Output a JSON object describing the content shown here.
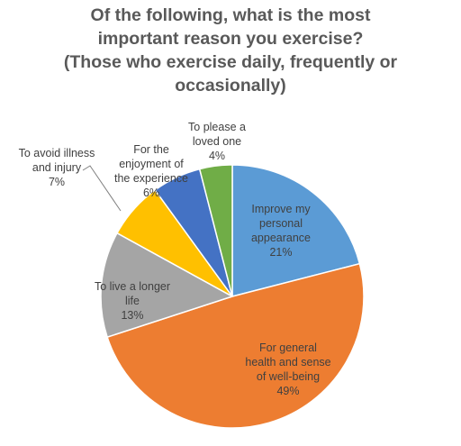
{
  "chart_data": {
    "type": "pie",
    "title": [
      "Of the following, what is the most",
      "important reason you exercise?",
      "(Those who exercise daily, frequently or",
      "occasionally)"
    ],
    "slices": [
      {
        "label": [
          "Improve my",
          "personal",
          "appearance"
        ],
        "value": 21,
        "value_label": "21%",
        "color": "#5b9bd5"
      },
      {
        "label": [
          "For general",
          "health and sense",
          "of well-being"
        ],
        "value": 49,
        "value_label": "49%",
        "color": "#ed7d31"
      },
      {
        "label": [
          "To live a longer",
          "life"
        ],
        "value": 13,
        "value_label": "13%",
        "color": "#a5a5a5"
      },
      {
        "label": [
          "To avoid illness",
          "and injury"
        ],
        "value": 7,
        "value_label": "7%",
        "color": "#ffc000"
      },
      {
        "label": [
          "For the",
          "enjoyment of",
          "the experience"
        ],
        "value": 6,
        "value_label": "6%",
        "color": "#4472c4"
      },
      {
        "label": [
          "To please a",
          "loved one"
        ],
        "value": 4,
        "value_label": "4%",
        "color": "#70ad47"
      }
    ],
    "start_position": "12 o'clock",
    "direction": "clockwise",
    "legend": "none",
    "label_placement": "inside for large slices, outside with leader line for small slices"
  }
}
